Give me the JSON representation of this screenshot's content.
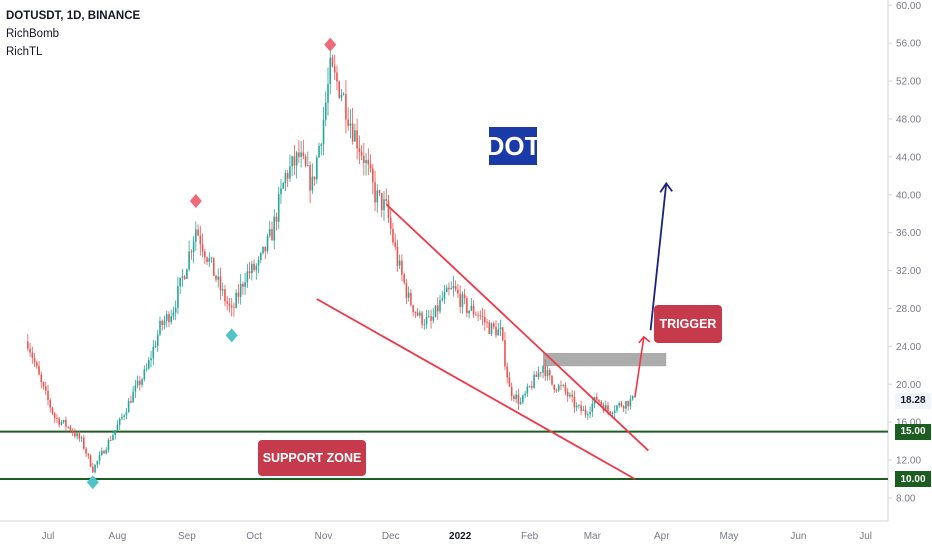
{
  "header": {
    "symbol": "DOTUSDT, 1D, BINANCE",
    "indicator_1": "RichBomb",
    "indicator_2": "RichTL"
  },
  "chart_data": {
    "type": "candlestick",
    "title": "DOT",
    "x_ticks": [
      "Jul",
      "Aug",
      "Sep",
      "Oct",
      "Nov",
      "Dec",
      "2022",
      "Feb",
      "Mar",
      "Apr",
      "May",
      "Jun",
      "Jul"
    ],
    "y_ticks": [
      "60.00",
      "56.00",
      "52.00",
      "48.00",
      "44.00",
      "40.00",
      "36.00",
      "32.00",
      "28.00",
      "24.00",
      "20.00",
      "16.00",
      "12.00",
      "8.00"
    ],
    "ylim": [
      6.5,
      60.5
    ],
    "current_price": "18.28",
    "support_levels": [
      "15.00",
      "10.00"
    ],
    "annotations": {
      "trigger": "TRIGGER",
      "support_zone": "SUPPORT ZONE"
    },
    "colors": {
      "up": "#26a69a",
      "down": "#ef5350",
      "support_line": "#1b5e20",
      "trendline": "#f23645",
      "projection_arrow": "#1a237e",
      "trigger_zone": "#9e9e9e"
    },
    "pivots": [
      {
        "date": "2021-07-21",
        "price": 10.5,
        "type": "low"
      },
      {
        "date": "2021-09-05",
        "price": 38.5,
        "type": "high"
      },
      {
        "date": "2021-09-21",
        "price": 26.0,
        "type": "low"
      },
      {
        "date": "2021-11-04",
        "price": 55.0,
        "type": "high"
      }
    ],
    "price_path": [
      [
        "2021-06-22",
        24.5
      ],
      [
        "2021-06-28",
        20.0
      ],
      [
        "2021-07-04",
        16.5
      ],
      [
        "2021-07-10",
        15.5
      ],
      [
        "2021-07-16",
        14.0
      ],
      [
        "2021-07-21",
        11.0
      ],
      [
        "2021-07-27",
        13.5
      ],
      [
        "2021-08-02",
        16.0
      ],
      [
        "2021-08-08",
        19.0
      ],
      [
        "2021-08-14",
        21.5
      ],
      [
        "2021-08-20",
        26.0
      ],
      [
        "2021-08-26",
        28.0
      ],
      [
        "2021-08-31",
        32.0
      ],
      [
        "2021-09-05",
        36.5
      ],
      [
        "2021-09-11",
        33.0
      ],
      [
        "2021-09-16",
        30.0
      ],
      [
        "2021-09-21",
        27.5
      ],
      [
        "2021-09-27",
        31.5
      ],
      [
        "2021-10-03",
        32.5
      ],
      [
        "2021-10-09",
        36.0
      ],
      [
        "2021-10-15",
        42.0
      ],
      [
        "2021-10-21",
        44.0
      ],
      [
        "2021-10-27",
        41.0
      ],
      [
        "2021-11-01",
        48.0
      ],
      [
        "2021-11-04",
        53.0
      ],
      [
        "2021-11-09",
        51.0
      ],
      [
        "2021-11-14",
        47.0
      ],
      [
        "2021-11-19",
        44.0
      ],
      [
        "2021-11-24",
        40.0
      ],
      [
        "2021-11-29",
        38.5
      ],
      [
        "2021-12-04",
        33.0
      ],
      [
        "2021-12-09",
        29.0
      ],
      [
        "2021-12-14",
        27.0
      ],
      [
        "2021-12-19",
        26.5
      ],
      [
        "2021-12-24",
        29.0
      ],
      [
        "2021-12-29",
        30.0
      ],
      [
        "2022-01-04",
        28.0
      ],
      [
        "2022-01-09",
        27.5
      ],
      [
        "2022-01-14",
        26.0
      ],
      [
        "2022-01-19",
        25.5
      ],
      [
        "2022-01-23",
        19.5
      ],
      [
        "2022-01-28",
        18.0
      ],
      [
        "2022-02-02",
        20.0
      ],
      [
        "2022-02-07",
        22.0
      ],
      [
        "2022-02-11",
        20.0
      ],
      [
        "2022-02-16",
        19.5
      ],
      [
        "2022-02-22",
        17.5
      ],
      [
        "2022-02-26",
        17.0
      ],
      [
        "2022-03-03",
        18.5
      ],
      [
        "2022-03-08",
        17.2
      ],
      [
        "2022-03-13",
        17.8
      ],
      [
        "2022-03-19",
        18.3
      ]
    ]
  }
}
